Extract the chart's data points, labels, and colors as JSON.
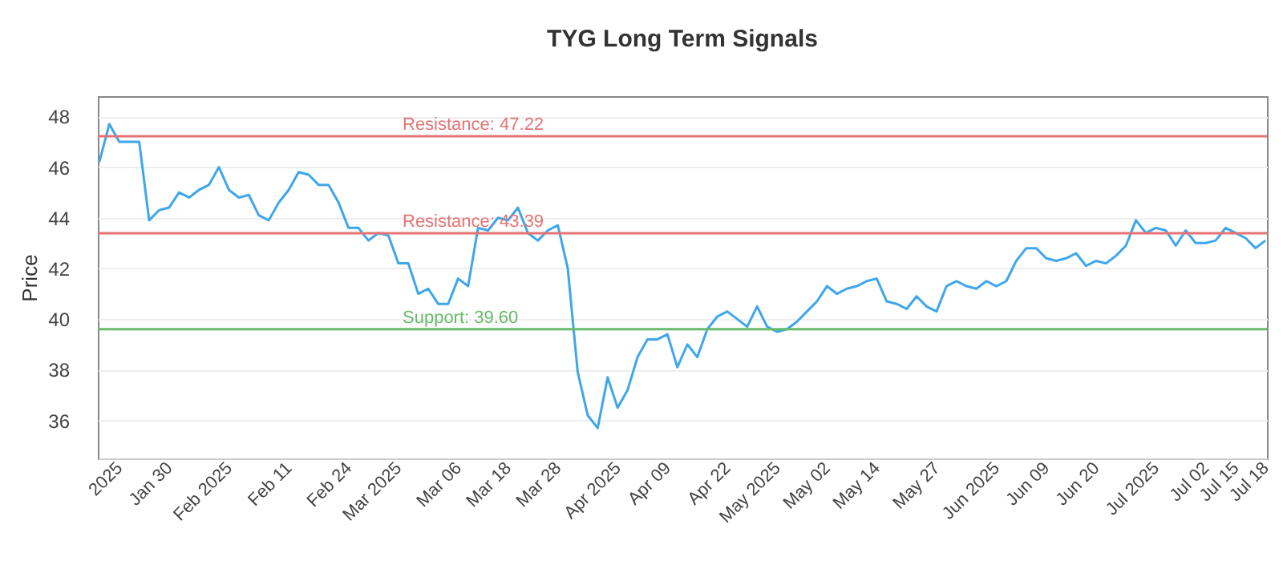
{
  "chart_data": {
    "type": "line",
    "title": "TYG Long Term Signals",
    "ylabel": "Price",
    "categories": [
      null,
      null,
      "2025",
      null,
      null,
      null,
      null,
      "Jan 30",
      null,
      null,
      null,
      null,
      null,
      "Feb 2025",
      null,
      null,
      null,
      null,
      null,
      "Feb 11",
      null,
      null,
      null,
      null,
      null,
      "Feb 24",
      null,
      null,
      null,
      null,
      "Mar 2025",
      null,
      null,
      null,
      null,
      null,
      "Mar 06",
      null,
      null,
      null,
      null,
      "Mar 18",
      null,
      null,
      null,
      null,
      "Mar 28",
      null,
      null,
      null,
      null,
      null,
      "Apr 2025",
      null,
      null,
      null,
      null,
      "Apr 09",
      null,
      null,
      null,
      null,
      null,
      "Apr 22",
      null,
      null,
      null,
      null,
      "May 2025",
      null,
      null,
      null,
      null,
      "May 02",
      null,
      null,
      null,
      null,
      "May 14",
      null,
      null,
      null,
      null,
      null,
      "May 27",
      null,
      null,
      null,
      null,
      null,
      "Jun 2025",
      null,
      null,
      null,
      null,
      "Jun 09",
      null,
      null,
      null,
      null,
      "Jun 20",
      null,
      null,
      null,
      null,
      null,
      "Jul 2025",
      null,
      null,
      null,
      null,
      "Jul 02",
      null,
      null,
      "Jul 15",
      null,
      null,
      "Jul 18"
    ],
    "series": [
      {
        "color": "#3ea6ec",
        "values": [
          46.2,
          47.7,
          47.0,
          47.0,
          47.0,
          43.9,
          44.3,
          44.4,
          45.0,
          44.8,
          45.1,
          45.3,
          46.0,
          45.1,
          44.8,
          44.9,
          44.1,
          43.9,
          44.6,
          45.1,
          45.8,
          45.7,
          45.3,
          45.3,
          44.6,
          43.6,
          43.6,
          43.1,
          43.4,
          43.3,
          42.2,
          42.2,
          41.0,
          41.2,
          40.6,
          40.6,
          41.6,
          41.3,
          43.6,
          43.5,
          44.0,
          43.9,
          44.4,
          43.4,
          43.1,
          43.5,
          43.7,
          42.0,
          37.9,
          36.2,
          35.7,
          37.7,
          36.5,
          37.2,
          38.5,
          39.2,
          39.2,
          39.4,
          38.1,
          39.0,
          38.5,
          39.6,
          40.1,
          40.3,
          40.0,
          39.7,
          40.5,
          39.7,
          39.5,
          39.6,
          39.9,
          40.3,
          40.7,
          41.3,
          41.0,
          41.2,
          41.3,
          41.5,
          41.6,
          40.7,
          40.6,
          40.4,
          40.9,
          40.5,
          40.3,
          41.3,
          41.5,
          41.3,
          41.2,
          41.5,
          41.3,
          41.5,
          42.3,
          42.8,
          42.8,
          42.4,
          42.3,
          42.4,
          42.6,
          42.1,
          42.3,
          42.2,
          42.5,
          42.9,
          43.9,
          43.4,
          43.6,
          43.5,
          42.9,
          43.5,
          43.0,
          43.0,
          43.1,
          43.6,
          43.4,
          43.2,
          42.8,
          43.1
        ]
      }
    ],
    "ylim": [
      34.5,
      48.8
    ],
    "yticks": [
      36,
      38,
      40,
      42,
      44,
      46,
      48
    ],
    "grid": "y",
    "marker": "none",
    "line_style": "solid",
    "ref_lines": [
      {
        "axis": "y",
        "value": 47.22,
        "label": "Resistance: 47.22",
        "color": "#e57373"
      },
      {
        "axis": "y",
        "value": 43.39,
        "label": "Resistance: 43.39",
        "color": "#e57373"
      },
      {
        "axis": "y",
        "value": 39.6,
        "label": "Support: 39.60",
        "color": "#66bb6a"
      }
    ]
  }
}
